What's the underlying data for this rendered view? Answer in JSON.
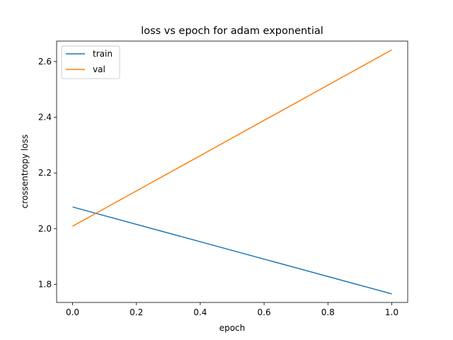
{
  "chart_data": {
    "type": "line",
    "title": "loss vs epoch for adam exponential",
    "xlabel": "epoch",
    "ylabel": "crossentropy loss",
    "x": [
      0.0,
      1.0
    ],
    "series": [
      {
        "name": "train",
        "values": [
          2.078,
          1.766
        ],
        "color": "#1f77b4"
      },
      {
        "name": "val",
        "values": [
          2.009,
          2.642
        ],
        "color": "#ff7f0e"
      }
    ],
    "xticks": [
      "0.0",
      "0.2",
      "0.4",
      "0.6",
      "0.8",
      "1.0"
    ],
    "yticks": [
      "1.8",
      "2.0",
      "2.2",
      "2.4",
      "2.6"
    ],
    "xlim": [
      -0.05,
      1.05
    ],
    "ylim": [
      1.7352,
      2.6735
    ],
    "grid": false,
    "legend": "upper-left"
  }
}
